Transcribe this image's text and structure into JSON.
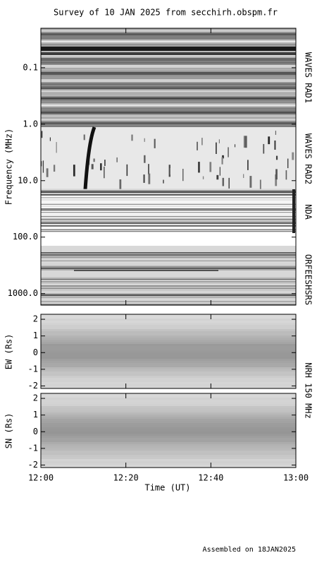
{
  "title": "Survey of 10 JAN 2025 from secchirh.obspm.fr",
  "time_axis": {
    "xlabel": "Time (UT)",
    "xlim": [
      0,
      60
    ],
    "xticks": [
      {
        "value": 0,
        "label": "12:00"
      },
      {
        "value": 20,
        "label": "12:20"
      },
      {
        "value": 40,
        "label": "12:40"
      },
      {
        "value": 60,
        "label": "13:00"
      }
    ]
  },
  "chart_data": [
    {
      "type": "spectrogram",
      "ylabel": "Frequency (MHz)",
      "ylog": true,
      "ylim": [
        0.02,
        1600
      ],
      "yticks": [
        0.1,
        {
          "value": 1,
          "label": "1.0"
        },
        {
          "value": 10,
          "label": "10.0"
        },
        {
          "value": 100,
          "label": "100.0"
        },
        {
          "value": 1000,
          "label": "1000.0"
        }
      ],
      "instruments": [
        "WAVES RAD1",
        "WAVES RAD2",
        "NDA",
        "ORFEESHSRS"
      ]
    },
    {
      "type": "image",
      "ylabel": "EW (Rs)",
      "ylim": [
        -2.15,
        2.3
      ],
      "yticks": [
        -2,
        -1,
        0,
        1,
        2
      ]
    },
    {
      "type": "image",
      "ylabel": "SN (Rs)",
      "ylim": [
        -2.15,
        2.3
      ],
      "yticks": [
        -2,
        -1,
        0,
        1,
        2
      ]
    }
  ],
  "nrh_label": "NRH 150 MHz",
  "footer": "Assembled on 18JAN2025"
}
